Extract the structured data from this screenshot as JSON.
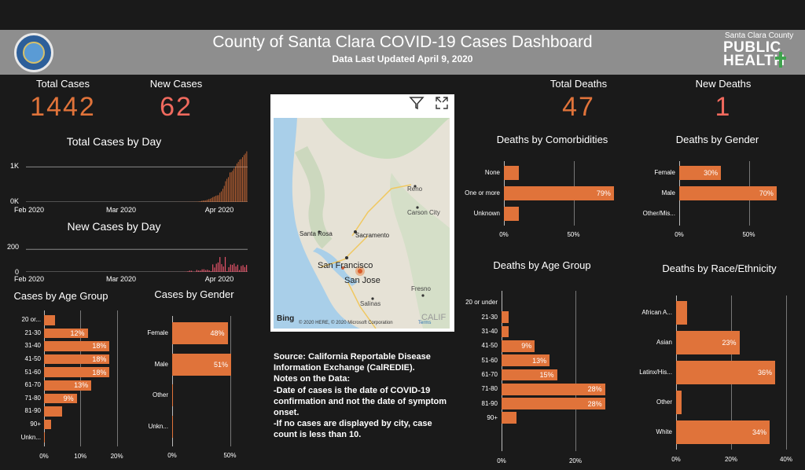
{
  "header": {
    "title": "County of Santa Clara COVID-19 Cases Dashboard",
    "subtitle": "Data Last Updated April 9, 2020",
    "brand_top": "Santa Clara County",
    "brand_line1": "PUBLIC",
    "brand_line2": "HEALTH"
  },
  "kpis": {
    "total_cases_label": "Total Cases",
    "total_cases": "1442",
    "new_cases_label": "New Cases",
    "new_cases": "62",
    "total_deaths_label": "Total Deaths",
    "total_deaths": "47",
    "new_deaths_label": "New Deaths",
    "new_deaths": "1"
  },
  "colors": {
    "accent": "#e0733a",
    "coral": "#f06a5e",
    "new_cases_bar": "#e8546a"
  },
  "chart_data": [
    {
      "type": "bar",
      "title": "Total Cases by Day",
      "x_ticks": [
        "Feb 2020",
        "Mar 2020",
        "Apr 2020"
      ],
      "y_ticks": [
        "1K",
        "0K"
      ],
      "ylim": [
        0,
        1500
      ],
      "values": [
        2,
        2,
        2,
        2,
        3,
        3,
        3,
        4,
        4,
        4,
        5,
        5,
        6,
        6,
        7,
        7,
        8,
        9,
        11,
        14,
        20,
        32,
        43,
        45,
        48,
        66,
        79,
        91,
        114,
        138,
        155,
        175,
        189,
        196,
        263,
        302,
        375,
        459,
        591,
        660,
        708,
        841,
        848,
        890,
        956,
        1019,
        1094,
        1143,
        1207,
        1224,
        1277,
        1337,
        1380,
        1442
      ]
    },
    {
      "type": "bar",
      "title": "New Cases by Day",
      "x_ticks": [
        "Feb 2020",
        "Mar 2020",
        "Apr 2020"
      ],
      "y_ticks": [
        "200",
        "0"
      ],
      "ylim": [
        0,
        230
      ],
      "values": [
        0,
        0,
        0,
        0,
        0,
        0,
        0,
        1,
        0,
        0,
        1,
        0,
        1,
        0,
        1,
        0,
        1,
        1,
        2,
        3,
        6,
        12,
        11,
        2,
        3,
        18,
        13,
        12,
        23,
        24,
        17,
        20,
        14,
        7,
        67,
        39,
        73,
        84,
        132,
        69,
        48,
        133,
        7,
        42,
        66,
        63,
        75,
        49,
        64,
        17,
        53,
        60,
        43,
        62
      ]
    },
    {
      "type": "bar",
      "title": "Cases by Age Group",
      "categories": [
        "20 or...",
        "21-30",
        "31-40",
        "41-50",
        "51-60",
        "61-70",
        "71-80",
        "81-90",
        "90+",
        "Unkn..."
      ],
      "values": [
        3,
        12,
        18,
        18,
        18,
        13,
        9,
        5,
        2,
        0.3
      ],
      "labels": [
        "",
        "12%",
        "18%",
        "18%",
        "18%",
        "13%",
        "9%",
        "",
        "",
        ""
      ],
      "x_ticks": [
        "0%",
        "10%",
        "20%"
      ]
    },
    {
      "type": "bar",
      "title": "Cases by Gender",
      "categories": [
        "Female",
        "Male",
        "Other",
        "Unkn..."
      ],
      "values": [
        48,
        51,
        0.2,
        0.5
      ],
      "labels": [
        "48%",
        "51%",
        "",
        ""
      ],
      "x_ticks": [
        "0%",
        "50%"
      ]
    },
    {
      "type": "bar",
      "title": "Deaths by Comorbidities",
      "categories": [
        "None",
        "One or more",
        "Unknown"
      ],
      "values": [
        11,
        79,
        11
      ],
      "labels": [
        "",
        "79%",
        ""
      ],
      "x_ticks": [
        "0%",
        "50%"
      ]
    },
    {
      "type": "bar",
      "title": "Deaths by Gender",
      "categories": [
        "Female",
        "Male",
        "Other/Mis..."
      ],
      "values": [
        30,
        70,
        0
      ],
      "labels": [
        "30%",
        "70%",
        ""
      ],
      "x_ticks": [
        "0%",
        "50%"
      ]
    },
    {
      "type": "bar",
      "title": "Deaths by Age Group",
      "categories": [
        "20 or under",
        "21-30",
        "31-40",
        "41-50",
        "51-60",
        "61-70",
        "71-80",
        "81-90",
        "90+"
      ],
      "values": [
        0,
        2,
        2,
        9,
        13,
        15,
        28,
        28,
        4
      ],
      "labels": [
        "",
        "",
        "",
        "9%",
        "13%",
        "15%",
        "28%",
        "28%",
        ""
      ],
      "x_ticks": [
        "0%",
        "20%"
      ]
    },
    {
      "type": "bar",
      "title": "Deaths by Race/Ethnicity",
      "categories": [
        "African A...",
        "Asian",
        "Latinx/His...",
        "Other",
        "White"
      ],
      "values": [
        4,
        23,
        36,
        2,
        34
      ],
      "labels": [
        "",
        "23%",
        "36%",
        "",
        "34%"
      ],
      "x_ticks": [
        "0%",
        "20%",
        "40%"
      ]
    }
  ],
  "map": {
    "provider": "Bing",
    "attribution": "© 2020 HERE, © 2020 Microsoft Corporation",
    "terms": "Terms",
    "filter_icon": "filter-icon",
    "expand_icon": "expand-icon",
    "labels": {
      "reno": "Reno",
      "carson": "Carson City",
      "santa_rosa": "Santa Rosa",
      "sacramento": "Sacramento",
      "sf": "San Francisco",
      "sj": "San Jose",
      "fresno": "Fresno",
      "salinas": "Salinas",
      "cali": "CALIF"
    }
  },
  "notes": {
    "line1": "Source: California Reportable Disease Information Exchange (CalREDIE).",
    "line2": "Notes on the Data:",
    "line3": "-Date of cases is the date of COVID-19 confirmation and not the date of symptom onset.",
    "line4": "-If no cases are displayed by city, case count is less than 10."
  }
}
